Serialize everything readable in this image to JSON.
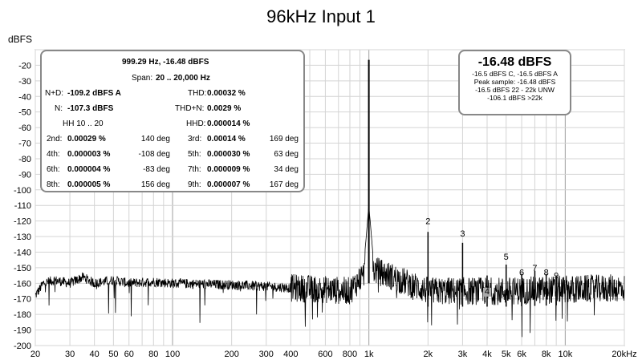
{
  "chart_data": {
    "type": "line",
    "title": "96kHz Input 1",
    "ylabel": "dBFS",
    "xlabel": "",
    "xscale": "log",
    "xlim": [
      20,
      20000
    ],
    "ylim": [
      -200,
      -10
    ],
    "grid": true,
    "x_tick_labels": [
      {
        "value": 20,
        "label": "20"
      },
      {
        "value": 30,
        "label": "30"
      },
      {
        "value": 40,
        "label": "40"
      },
      {
        "value": 50,
        "label": "50"
      },
      {
        "value": 60,
        "label": "60"
      },
      {
        "value": 80,
        "label": "80"
      },
      {
        "value": 100,
        "label": "100"
      },
      {
        "value": 200,
        "label": "200"
      },
      {
        "value": 300,
        "label": "300"
      },
      {
        "value": 400,
        "label": "400"
      },
      {
        "value": 600,
        "label": "600"
      },
      {
        "value": 800,
        "label": "800"
      },
      {
        "value": 1000,
        "label": "1k"
      },
      {
        "value": 2000,
        "label": "2k"
      },
      {
        "value": 3000,
        "label": "3k"
      },
      {
        "value": 4000,
        "label": "4k"
      },
      {
        "value": 5000,
        "label": "5k"
      },
      {
        "value": 6000,
        "label": "6k"
      },
      {
        "value": 8000,
        "label": "8k"
      },
      {
        "value": 10000,
        "label": "10k"
      },
      {
        "value": 20000,
        "label": "20kHz"
      }
    ],
    "y_tick_labels": [
      {
        "value": -20,
        "label": "-20"
      },
      {
        "value": -30,
        "label": "-30"
      },
      {
        "value": -40,
        "label": "-40"
      },
      {
        "value": -50,
        "label": "-50"
      },
      {
        "value": -60,
        "label": "-60"
      },
      {
        "value": -70,
        "label": "-70"
      },
      {
        "value": -80,
        "label": "-80"
      },
      {
        "value": -90,
        "label": "-90"
      },
      {
        "value": -100,
        "label": "-100"
      },
      {
        "value": -110,
        "label": "-110"
      },
      {
        "value": -120,
        "label": "-120"
      },
      {
        "value": -130,
        "label": "-130"
      },
      {
        "value": -140,
        "label": "-140"
      },
      {
        "value": -150,
        "label": "-150"
      },
      {
        "value": -160,
        "label": "-160"
      },
      {
        "value": -170,
        "label": "-170"
      },
      {
        "value": -180,
        "label": "-180"
      },
      {
        "value": -190,
        "label": "-190"
      },
      {
        "value": -200,
        "label": "-200"
      }
    ],
    "series": [
      {
        "color": "#000000",
        "peaks": [
          {
            "x": 999.29,
            "y": -16.48
          },
          {
            "x": 2000,
            "y": -127
          },
          {
            "x": 3000,
            "y": -134
          },
          {
            "x": 4000,
            "y": -155
          },
          {
            "x": 5000,
            "y": -148
          },
          {
            "x": 6000,
            "y": -154
          },
          {
            "x": 7000,
            "y": -152
          },
          {
            "x": 8000,
            "y": -154
          },
          {
            "x": 9000,
            "y": -155
          }
        ],
        "noise_floor": [
          {
            "x": 20,
            "y": -168
          },
          {
            "x": 22,
            "y": -160
          },
          {
            "x": 25,
            "y": -158
          },
          {
            "x": 30,
            "y": -160
          },
          {
            "x": 35,
            "y": -156
          },
          {
            "x": 40,
            "y": -160
          },
          {
            "x": 50,
            "y": -158
          },
          {
            "x": 60,
            "y": -160
          },
          {
            "x": 80,
            "y": -159
          },
          {
            "x": 100,
            "y": -160
          },
          {
            "x": 200,
            "y": -161
          },
          {
            "x": 300,
            "y": -162
          },
          {
            "x": 400,
            "y": -163
          },
          {
            "x": 600,
            "y": -164
          },
          {
            "x": 800,
            "y": -165
          },
          {
            "x": 1000,
            "y": -150
          },
          {
            "x": 2000,
            "y": -165
          },
          {
            "x": 5000,
            "y": -165
          },
          {
            "x": 10000,
            "y": -164
          },
          {
            "x": 20000,
            "y": -163
          }
        ]
      }
    ],
    "harmonic_labels": [
      {
        "label": "2",
        "x": 2000,
        "y": -122
      },
      {
        "label": "3",
        "x": 3000,
        "y": -130
      },
      {
        "label": "4",
        "x": 4000,
        "y": -167
      },
      {
        "label": "5",
        "x": 5000,
        "y": -145
      },
      {
        "label": "6",
        "x": 6000,
        "y": -155
      },
      {
        "label": "7",
        "x": 7000,
        "y": -152
      },
      {
        "label": "8",
        "x": 8000,
        "y": -155
      },
      {
        "label": "9",
        "x": 9000,
        "y": -157
      }
    ]
  },
  "info": {
    "header1": "999.29 Hz, -16.48 dBFS",
    "span_label": "Span:",
    "span_value": "20 .. 20,000 Hz",
    "nd_label": "N+D:",
    "nd_value": "-109.2 dBFS A",
    "thd_label": "THD:",
    "thd_value": "0.00032 %",
    "n_label": "N:",
    "n_value": "-107.3 dBFS",
    "thdn_label": "THD+N:",
    "thdn_value": "0.0029 %",
    "hh_label": "HH 10 .. 20",
    "hhd_label": "HHD:",
    "hhd_value": "0.000014 %",
    "rows": [
      {
        "l1": "2nd:",
        "v1": "0.00029 %",
        "d1": "140 deg",
        "l2": "3rd:",
        "v2": "0.00014 %",
        "d2": "169 deg"
      },
      {
        "l1": "4th:",
        "v1": "0.000003 %",
        "d1": "-108 deg",
        "l2": "5th:",
        "v2": "0.000030 %",
        "d2": "63 deg"
      },
      {
        "l1": "6th:",
        "v1": "0.000004 %",
        "d1": "-83 deg",
        "l2": "7th:",
        "v2": "0.000009 %",
        "d2": "34 deg"
      },
      {
        "l1": "8th:",
        "v1": "0.000005 %",
        "d1": "156 deg",
        "l2": "9th:",
        "v2": "0.000007 %",
        "d2": "167 deg"
      }
    ]
  },
  "level": {
    "main": "-16.48 dBFS",
    "line1": "-16.5 dBFS C, -16.5 dBFS A",
    "line2": "Peak sample: -16.48 dBFS",
    "line3": "-16.5 dBFS 22 - 22k UNW",
    "line4": "-106.1 dBFS >22k"
  }
}
